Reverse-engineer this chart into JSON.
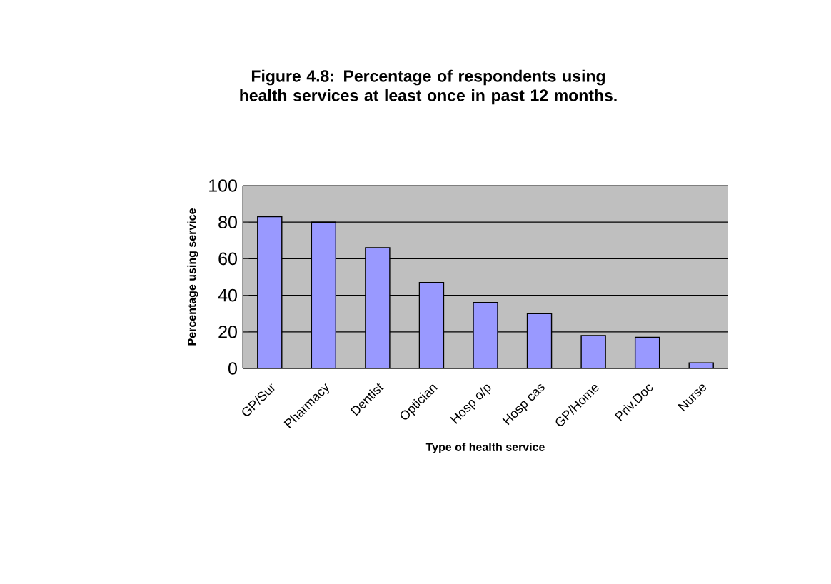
{
  "chart_data": {
    "type": "bar",
    "title": "Figure 4.8: Percentage of respondents using health services at least once in past 12 months.",
    "xlabel": "Type of health service",
    "ylabel": "Percentage using service",
    "categories": [
      "GP/Sur",
      "Pharmacy",
      "Dentist",
      "Optician",
      "Hosp o/p",
      "Hosp cas",
      "GP/Home",
      "Priv.Doc",
      "Nurse"
    ],
    "values": [
      83,
      80,
      66,
      47,
      36,
      30,
      18,
      17,
      3
    ],
    "color": "#9999ff",
    "ylim": [
      0,
      100
    ],
    "yticks": [
      0,
      20,
      40,
      60,
      80,
      100
    ],
    "grid": "y"
  }
}
